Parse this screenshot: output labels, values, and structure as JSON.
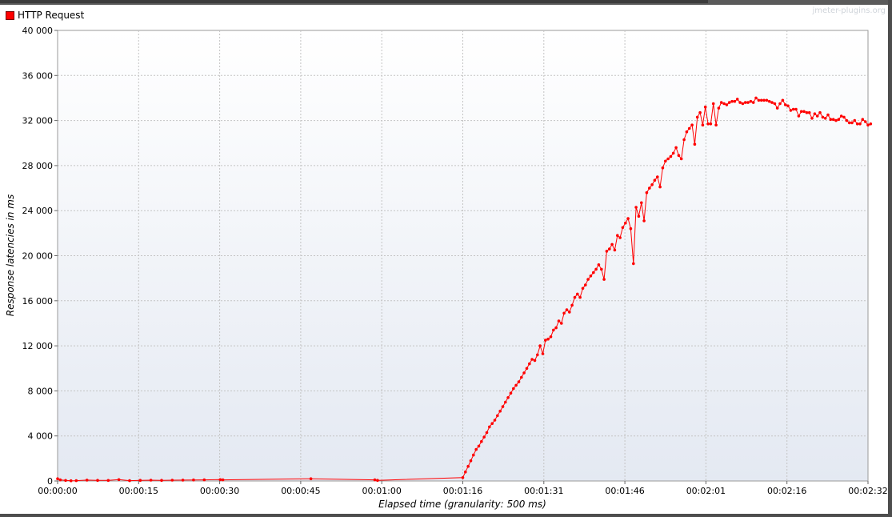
{
  "legend": {
    "label": "HTTP Request",
    "color": "#ff0000"
  },
  "watermark": "jmeter-plugins.org",
  "chart_data": {
    "type": "line",
    "xlabel": "Elapsed time (granularity: 500 ms)",
    "ylabel": "Response latencies in ms",
    "x_ticks": [
      "00:00:00",
      "00:00:15",
      "00:00:30",
      "00:00:45",
      "00:01:00",
      "00:01:16",
      "00:01:31",
      "00:01:46",
      "00:02:01",
      "00:02:16",
      "00:02:32"
    ],
    "y_ticks": [
      "0",
      "4 000",
      "8 000",
      "12 000",
      "16 000",
      "20 000",
      "24 000",
      "28 000",
      "32 000",
      "36 000",
      "40 000"
    ],
    "xlim": [
      0,
      152
    ],
    "ylim": [
      0,
      40000
    ],
    "grid": true,
    "legend_position": "top-left",
    "series": [
      {
        "name": "HTTP Request",
        "color": "#ff0000",
        "points": [
          [
            0,
            200
          ],
          [
            0.5,
            100
          ],
          [
            1.5,
            50
          ],
          [
            2.5,
            20
          ],
          [
            3.5,
            30
          ],
          [
            5.5,
            80
          ],
          [
            7.5,
            60
          ],
          [
            9.5,
            50
          ],
          [
            11.5,
            120
          ],
          [
            13.5,
            30
          ],
          [
            15.5,
            60
          ],
          [
            17.5,
            70
          ],
          [
            19.5,
            60
          ],
          [
            21.5,
            70
          ],
          [
            23.5,
            80
          ],
          [
            25.5,
            90
          ],
          [
            27.5,
            100
          ],
          [
            30.5,
            120
          ],
          [
            31,
            100
          ],
          [
            47.5,
            200
          ],
          [
            59.5,
            100
          ],
          [
            60,
            60
          ],
          [
            76,
            300
          ],
          [
            76.5,
            800
          ],
          [
            77,
            1300
          ],
          [
            77.5,
            1800
          ],
          [
            78,
            2300
          ],
          [
            78.5,
            2800
          ],
          [
            79,
            3100
          ],
          [
            79.5,
            3500
          ],
          [
            80,
            3900
          ],
          [
            80.5,
            4300
          ],
          [
            81,
            4800
          ],
          [
            81.5,
            5100
          ],
          [
            82,
            5400
          ],
          [
            82.5,
            5800
          ],
          [
            83,
            6200
          ],
          [
            83.5,
            6600
          ],
          [
            84,
            7000
          ],
          [
            84.5,
            7400
          ],
          [
            85,
            7800
          ],
          [
            85.5,
            8200
          ],
          [
            86,
            8500
          ],
          [
            86.5,
            8800
          ],
          [
            87,
            9200
          ],
          [
            87.5,
            9600
          ],
          [
            88,
            10000
          ],
          [
            88.5,
            10400
          ],
          [
            89,
            10800
          ],
          [
            89.5,
            10700
          ],
          [
            90,
            11200
          ],
          [
            90.5,
            12000
          ],
          [
            91,
            11300
          ],
          [
            91.5,
            12500
          ],
          [
            92,
            12600
          ],
          [
            92.5,
            12800
          ],
          [
            93,
            13400
          ],
          [
            93.5,
            13600
          ],
          [
            94,
            14200
          ],
          [
            94.5,
            14000
          ],
          [
            95,
            14900
          ],
          [
            95.5,
            15200
          ],
          [
            96,
            15000
          ],
          [
            96.5,
            15600
          ],
          [
            97,
            16300
          ],
          [
            97.5,
            16600
          ],
          [
            98,
            16300
          ],
          [
            98.5,
            17100
          ],
          [
            99,
            17400
          ],
          [
            99.5,
            17900
          ],
          [
            100,
            18200
          ],
          [
            100.5,
            18500
          ],
          [
            101,
            18800
          ],
          [
            101.5,
            19200
          ],
          [
            102,
            18800
          ],
          [
            102.5,
            17900
          ],
          [
            103,
            20400
          ],
          [
            103.5,
            20600
          ],
          [
            104,
            21000
          ],
          [
            104.5,
            20500
          ],
          [
            105,
            21800
          ],
          [
            105.5,
            21600
          ],
          [
            106,
            22500
          ],
          [
            106.5,
            22900
          ],
          [
            107,
            23300
          ],
          [
            107.5,
            22400
          ],
          [
            108,
            19300
          ],
          [
            108.5,
            24300
          ],
          [
            109,
            23500
          ],
          [
            109.5,
            24700
          ],
          [
            110,
            23100
          ],
          [
            110.5,
            25600
          ],
          [
            111,
            26000
          ],
          [
            111.5,
            26300
          ],
          [
            112,
            26700
          ],
          [
            112.5,
            27000
          ],
          [
            113,
            26100
          ],
          [
            113.5,
            27800
          ],
          [
            114,
            28400
          ],
          [
            114.5,
            28600
          ],
          [
            115,
            28800
          ],
          [
            115.5,
            29100
          ],
          [
            116,
            29600
          ],
          [
            116.5,
            28900
          ],
          [
            117,
            28600
          ],
          [
            117.5,
            30300
          ],
          [
            118,
            31000
          ],
          [
            118.5,
            31300
          ],
          [
            119,
            31600
          ],
          [
            119.5,
            29900
          ],
          [
            120,
            32300
          ],
          [
            120.5,
            32700
          ],
          [
            121,
            31600
          ],
          [
            121.5,
            33200
          ],
          [
            122,
            31700
          ],
          [
            122.5,
            31700
          ],
          [
            123,
            33500
          ],
          [
            123.5,
            31600
          ],
          [
            124,
            33100
          ],
          [
            124.5,
            33600
          ],
          [
            125,
            33500
          ],
          [
            125.5,
            33400
          ],
          [
            126,
            33600
          ],
          [
            126.5,
            33700
          ],
          [
            127,
            33700
          ],
          [
            127.5,
            33900
          ],
          [
            128,
            33600
          ],
          [
            128.5,
            33500
          ],
          [
            129,
            33600
          ],
          [
            129.5,
            33600
          ],
          [
            130,
            33700
          ],
          [
            130.5,
            33600
          ],
          [
            131,
            34000
          ],
          [
            131.5,
            33800
          ],
          [
            132,
            33800
          ],
          [
            132.5,
            33800
          ],
          [
            133,
            33800
          ],
          [
            133.5,
            33700
          ],
          [
            134,
            33600
          ],
          [
            134.5,
            33500
          ],
          [
            135,
            33100
          ],
          [
            135.5,
            33500
          ],
          [
            136,
            33800
          ],
          [
            136.5,
            33400
          ],
          [
            137,
            33300
          ],
          [
            137.5,
            32900
          ],
          [
            138,
            33000
          ],
          [
            138.5,
            33000
          ],
          [
            139,
            32400
          ],
          [
            139.5,
            32800
          ],
          [
            140,
            32800
          ],
          [
            140.5,
            32700
          ],
          [
            141,
            32700
          ],
          [
            141.5,
            32200
          ],
          [
            142,
            32600
          ],
          [
            142.5,
            32400
          ],
          [
            143,
            32700
          ],
          [
            143.5,
            32300
          ],
          [
            144,
            32200
          ],
          [
            144.5,
            32500
          ],
          [
            145,
            32100
          ],
          [
            145.5,
            32100
          ],
          [
            146,
            32000
          ],
          [
            146.5,
            32100
          ],
          [
            147,
            32400
          ],
          [
            147.5,
            32300
          ],
          [
            148,
            32000
          ],
          [
            148.5,
            31800
          ],
          [
            149,
            31800
          ],
          [
            149.5,
            32000
          ],
          [
            150,
            31700
          ],
          [
            150.5,
            31700
          ],
          [
            151,
            32100
          ],
          [
            151.5,
            31900
          ],
          [
            152,
            31600
          ],
          [
            152.5,
            31700
          ]
        ]
      }
    ]
  }
}
